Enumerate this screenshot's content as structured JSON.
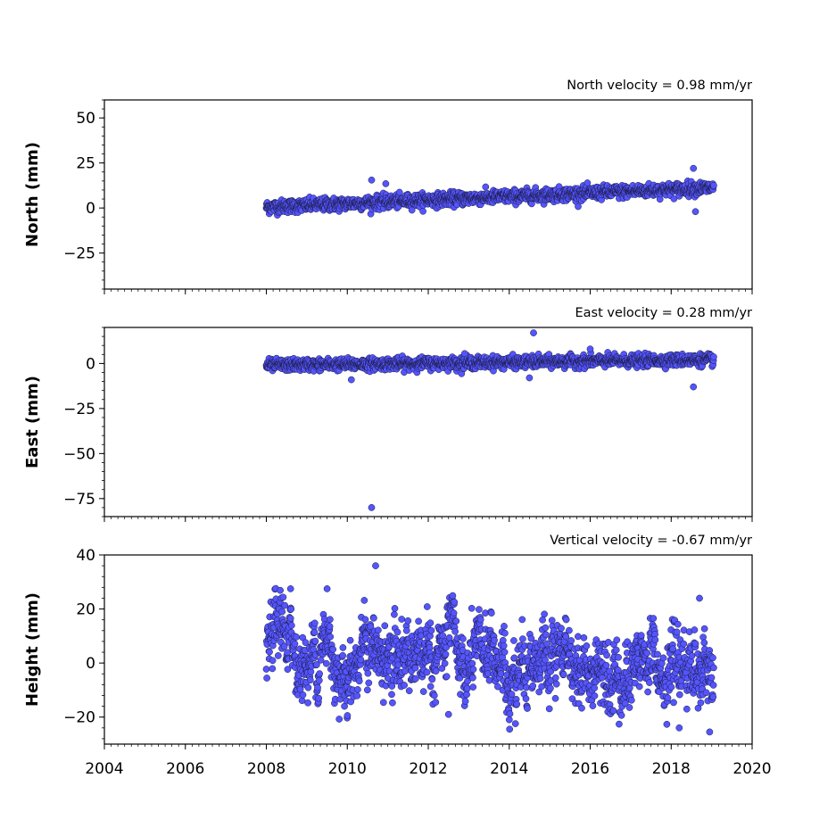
{
  "chart_data": [
    {
      "type": "scatter",
      "panel": "north",
      "title": "North velocity = 0.98 mm/yr",
      "xlabel": "",
      "ylabel": "North (mm)",
      "xlim": [
        2004,
        2020
      ],
      "ylim": [
        -45,
        60
      ],
      "yticks": [
        50,
        25,
        0,
        -25
      ],
      "ytick_labels": [
        "50",
        "25",
        "0",
        "−25"
      ],
      "x_range": [
        2008.0,
        2019.05
      ],
      "trend": {
        "start": 0.5,
        "slope_per_year": 0.98
      },
      "noise_sd": 1.8,
      "series": [
        {
          "values": "daily solution, ~2008–2019"
        }
      ],
      "outliers": [
        [
          2010.6,
          15.5
        ],
        [
          2010.95,
          13.5
        ],
        [
          2018.55,
          22
        ],
        [
          2018.6,
          -2
        ]
      ]
    },
    {
      "type": "scatter",
      "panel": "east",
      "title": "East velocity = 0.28 mm/yr",
      "xlabel": "",
      "ylabel": "East (mm)",
      "xlim": [
        2004,
        2020
      ],
      "ylim": [
        -85,
        20
      ],
      "yticks": [
        0,
        -25,
        -50,
        -75
      ],
      "ytick_labels": [
        "0",
        "−25",
        "−50",
        "−75"
      ],
      "x_range": [
        2008.0,
        2019.05
      ],
      "trend": {
        "start": -1.0,
        "slope_per_year": 0.28
      },
      "noise_sd": 1.6,
      "series": [
        {
          "values": "daily solution, ~2008–2019"
        }
      ],
      "outliers": [
        [
          2010.6,
          -80
        ],
        [
          2014.6,
          17
        ],
        [
          2016.0,
          8
        ],
        [
          2010.1,
          -9
        ],
        [
          2014.5,
          -8
        ],
        [
          2018.55,
          -13
        ],
        [
          2012.9,
          5.5
        ]
      ]
    },
    {
      "type": "scatter",
      "panel": "height",
      "title": "Vertical velocity = -0.67 mm/yr",
      "xlabel": "",
      "ylabel": "Height (mm)",
      "xlim": [
        2004,
        2020
      ],
      "ylim": [
        -30,
        40
      ],
      "yticks": [
        40,
        20,
        0,
        -20
      ],
      "ytick_labels": [
        "40",
        "20",
        "0",
        "−20"
      ],
      "x_range": [
        2008.0,
        2019.05
      ],
      "trend": {
        "start": 4.0,
        "slope_per_year": -0.67
      },
      "noise_sd": 6.5,
      "seasonal_amplitude": 4.5,
      "series": [
        {
          "values": "daily solution, ~2008–2019"
        }
      ],
      "outliers": [
        [
          2010.7,
          36
        ],
        [
          2008.6,
          27.5
        ],
        [
          2009.5,
          27.5
        ],
        [
          2018.7,
          24
        ],
        [
          2018.95,
          -25.5
        ],
        [
          2012.5,
          -19
        ],
        [
          2014.0,
          -21
        ],
        [
          2018.2,
          -24
        ]
      ]
    }
  ],
  "x_axis": {
    "ticks": [
      2004,
      2006,
      2008,
      2010,
      2012,
      2014,
      2016,
      2018,
      2020
    ],
    "tick_labels": [
      "2004",
      "2006",
      "2008",
      "2010",
      "2012",
      "2014",
      "2016",
      "2018",
      "2020"
    ],
    "minor_tick_step_years": 0.1667
  },
  "colors": {
    "marker_fill": "#5555ff",
    "marker_edge": "#1a1a40",
    "frame": "#000000",
    "background": "#ffffff"
  }
}
